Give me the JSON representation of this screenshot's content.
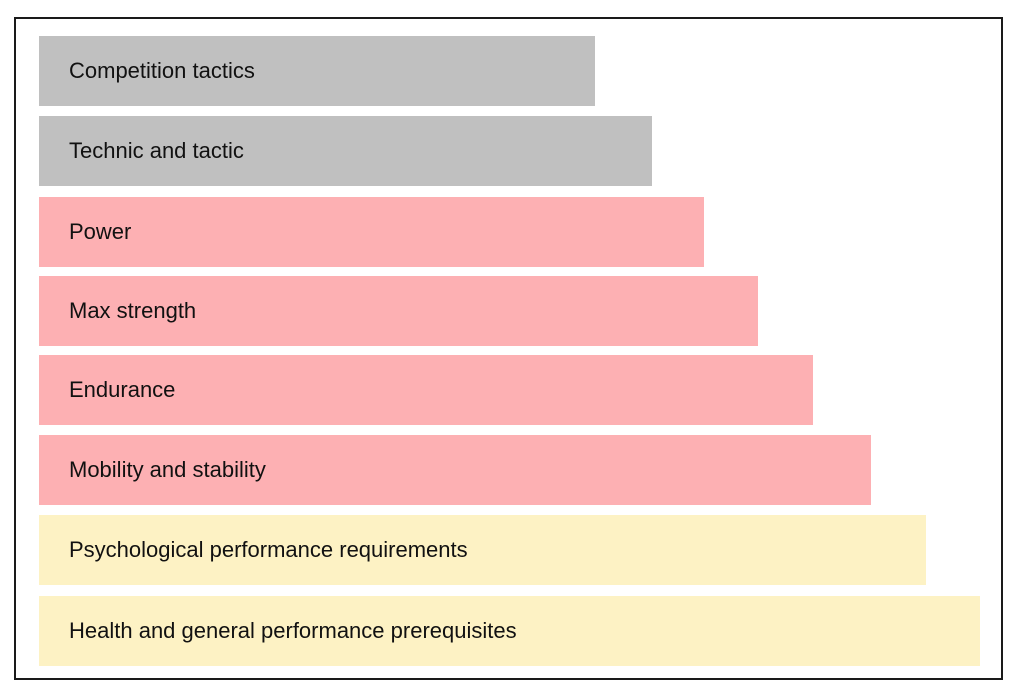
{
  "colors": {
    "frame": "#1a1a1a",
    "technique_group": "#c0c0c0",
    "physical_group": "#fdb0b3",
    "foundation_group": "#fdf2c4"
  },
  "pyramid": {
    "levels": [
      {
        "label": "Competition tactics",
        "group": "technique_group"
      },
      {
        "label": "Technic and tactic",
        "group": "technique_group"
      },
      {
        "label": "Power",
        "group": "physical_group"
      },
      {
        "label": "Max strength",
        "group": "physical_group"
      },
      {
        "label": "Endurance",
        "group": "physical_group"
      },
      {
        "label": "Mobility and stability",
        "group": "physical_group"
      },
      {
        "label": "Psychological performance requirements",
        "group": "foundation_group"
      },
      {
        "label": "Health and general performance prerequisites",
        "group": "foundation_group"
      }
    ]
  }
}
